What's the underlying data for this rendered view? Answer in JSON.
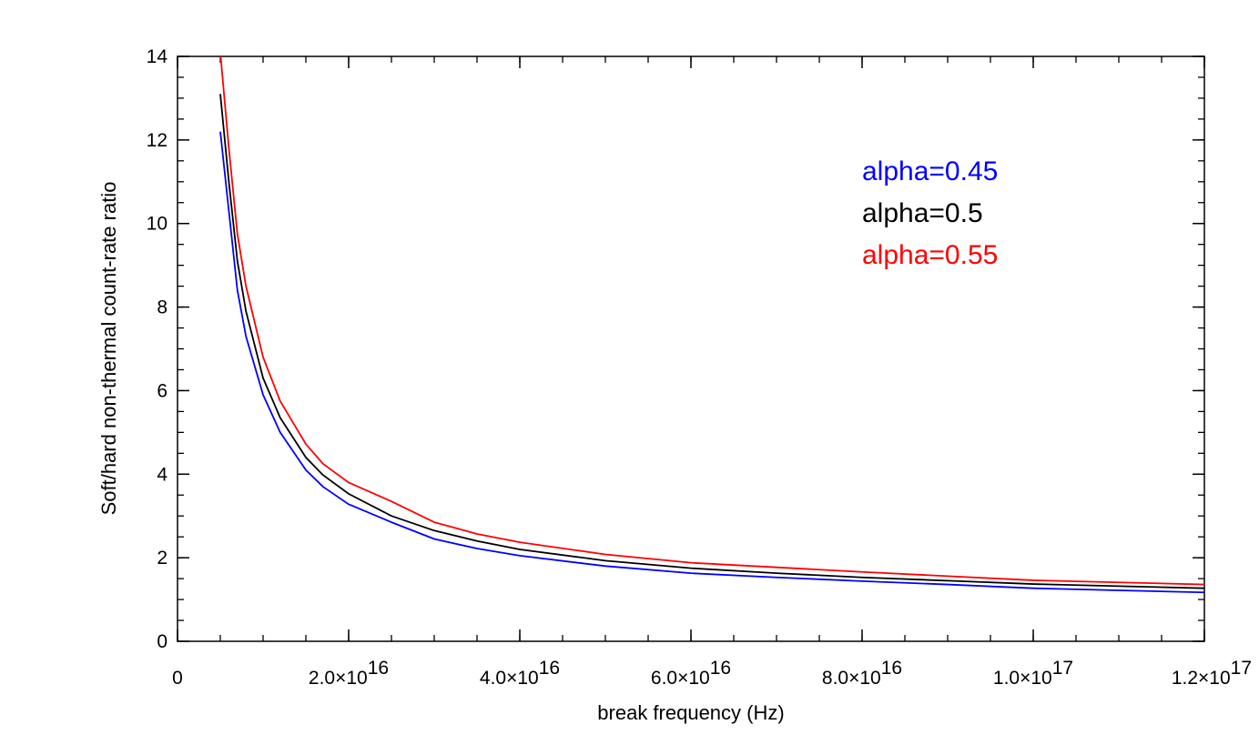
{
  "chart_data": {
    "type": "line",
    "title": "",
    "xlabel": "break frequency (Hz)",
    "ylabel": "Soft/hard non-thermal count-rate ratio",
    "xlim": [
      0,
      1.2e+17
    ],
    "ylim": [
      0,
      14
    ],
    "grid": false,
    "legend_position": "top-right",
    "x_ticks": [
      {
        "value": 0,
        "mantissa": "0",
        "exponent": ""
      },
      {
        "value": 2e+16,
        "mantissa": "2.0×10",
        "exponent": "16"
      },
      {
        "value": 4e+16,
        "mantissa": "4.0×10",
        "exponent": "16"
      },
      {
        "value": 6e+16,
        "mantissa": "6.0×10",
        "exponent": "16"
      },
      {
        "value": 8e+16,
        "mantissa": "8.0×10",
        "exponent": "16"
      },
      {
        "value": 1e+17,
        "mantissa": "1.0×10",
        "exponent": "17"
      },
      {
        "value": 1.2e+17,
        "mantissa": "1.2×10",
        "exponent": "17"
      }
    ],
    "y_ticks": [
      {
        "value": 0,
        "label": "0"
      },
      {
        "value": 2,
        "label": "2"
      },
      {
        "value": 4,
        "label": "4"
      },
      {
        "value": 6,
        "label": "6"
      },
      {
        "value": 8,
        "label": "8"
      },
      {
        "value": 10,
        "label": "10"
      },
      {
        "value": 12,
        "label": "12"
      },
      {
        "value": 14,
        "label": "14"
      }
    ],
    "x_minor_step": 5000000000000000.0,
    "y_minor_step": 0.5,
    "series": [
      {
        "name": "alpha=0.45",
        "color": "#0000ff",
        "x": [
          5000000000000000.0,
          6000000000000000.0,
          7000000000000000.0,
          8000000000000000.0,
          1e+16,
          1.2e+16,
          1.5e+16,
          1.7e+16,
          2e+16,
          2.5e+16,
          3e+16,
          3.5e+16,
          4e+16,
          5e+16,
          6e+16,
          7e+16,
          8e+16,
          9e+16,
          1e+17,
          1.1e+17,
          1.2e+17
        ],
        "y": [
          12.2,
          10.3,
          8.4,
          7.3,
          5.9,
          5.0,
          4.1,
          3.7,
          3.28,
          2.85,
          2.45,
          2.22,
          2.05,
          1.8,
          1.63,
          1.53,
          1.44,
          1.36,
          1.27,
          1.22,
          1.17
        ]
      },
      {
        "name": "alpha=0.5",
        "color": "#000000",
        "x": [
          5000000000000000.0,
          6000000000000000.0,
          7000000000000000.0,
          8000000000000000.0,
          1e+16,
          1.2e+16,
          1.5e+16,
          1.7e+16,
          2e+16,
          2.5e+16,
          3e+16,
          3.5e+16,
          4e+16,
          5e+16,
          6e+16,
          7e+16,
          8e+16,
          9e+16,
          1e+17,
          1.1e+17,
          1.2e+17
        ],
        "y": [
          13.1,
          11.0,
          9.1,
          7.9,
          6.3,
          5.35,
          4.4,
          3.98,
          3.53,
          3.0,
          2.65,
          2.4,
          2.2,
          1.93,
          1.75,
          1.63,
          1.53,
          1.45,
          1.37,
          1.32,
          1.27
        ]
      },
      {
        "name": "alpha=0.55",
        "color": "#ff0000",
        "x": [
          5000000000000000.0,
          6000000000000000.0,
          7000000000000000.0,
          8000000000000000.0,
          1e+16,
          1.2e+16,
          1.5e+16,
          1.7e+16,
          2e+16,
          2.5e+16,
          3e+16,
          3.5e+16,
          4e+16,
          5e+16,
          6e+16,
          7e+16,
          8e+16,
          9e+16,
          1e+17,
          1.1e+17,
          1.2e+17
        ],
        "y": [
          14.1,
          11.8,
          9.75,
          8.5,
          6.8,
          5.75,
          4.72,
          4.25,
          3.8,
          3.35,
          2.85,
          2.57,
          2.37,
          2.08,
          1.88,
          1.77,
          1.66,
          1.56,
          1.46,
          1.41,
          1.36
        ]
      }
    ]
  }
}
